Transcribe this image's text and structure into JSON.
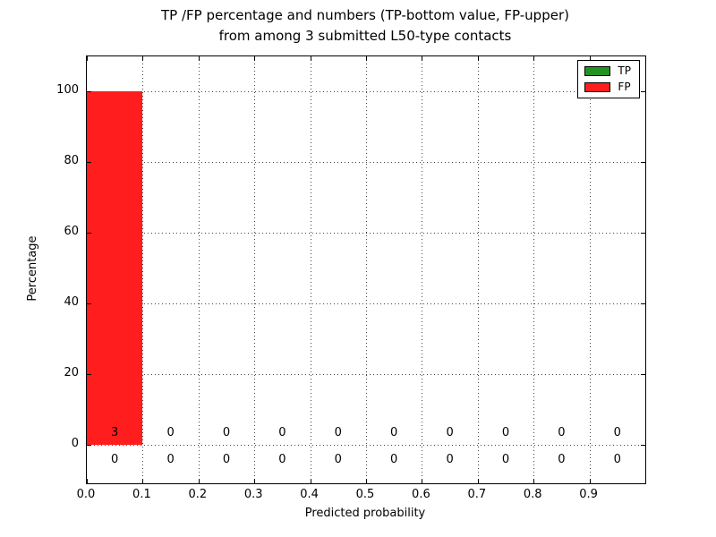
{
  "figure": {
    "title_line1": "TP /FP percentage and numbers (TP-bottom value, FP-upper)",
    "title_line2": "from among 3 submitted L50-type contacts"
  },
  "chart_data": {
    "type": "bar",
    "title": "TP /FP percentage and numbers (TP-bottom value, FP-upper) from among 3 submitted L50-type contacts",
    "xlabel": "Predicted probability",
    "ylabel": "Percentage",
    "xlim": [
      0.0,
      1.0
    ],
    "ylim": [
      -11,
      110
    ],
    "x_ticks": [
      0.0,
      0.1,
      0.2,
      0.3,
      0.4,
      0.5,
      0.6,
      0.7,
      0.8,
      0.9
    ],
    "x_tick_labels": [
      "0.0",
      "0.1",
      "0.2",
      "0.3",
      "0.4",
      "0.5",
      "0.6",
      "0.7",
      "0.8",
      "0.9"
    ],
    "y_ticks": [
      0,
      20,
      40,
      60,
      80,
      100
    ],
    "y_tick_labels": [
      "0",
      "20",
      "40",
      "60",
      "80",
      "100"
    ],
    "grid": true,
    "bin_edges": [
      0.0,
      0.1,
      0.2,
      0.3,
      0.4,
      0.5,
      0.6,
      0.7,
      0.8,
      0.9,
      1.0
    ],
    "bin_centers": [
      0.05,
      0.15,
      0.25,
      0.35,
      0.45,
      0.55,
      0.65,
      0.75,
      0.85,
      0.95
    ],
    "series": [
      {
        "name": "TP",
        "color": "#209320",
        "percent": [
          0,
          0,
          0,
          0,
          0,
          0,
          0,
          0,
          0,
          0
        ],
        "counts": [
          0,
          0,
          0,
          0,
          0,
          0,
          0,
          0,
          0,
          0
        ]
      },
      {
        "name": "FP",
        "color": "#ff1d1d",
        "percent": [
          100,
          0,
          0,
          0,
          0,
          0,
          0,
          0,
          0,
          0
        ],
        "counts": [
          3,
          0,
          0,
          0,
          0,
          0,
          0,
          0,
          0,
          0
        ]
      }
    ],
    "annotations": {
      "fp_counts": [
        "3",
        "0",
        "0",
        "0",
        "0",
        "0",
        "0",
        "0",
        "0",
        "0"
      ],
      "tp_counts": [
        "0",
        "0",
        "0",
        "0",
        "0",
        "0",
        "0",
        "0",
        "0",
        "0"
      ]
    },
    "legend": {
      "position": "upper right",
      "entries": [
        {
          "label": "TP",
          "color": "#209320"
        },
        {
          "label": "FP",
          "color": "#ff1d1d"
        }
      ]
    }
  }
}
